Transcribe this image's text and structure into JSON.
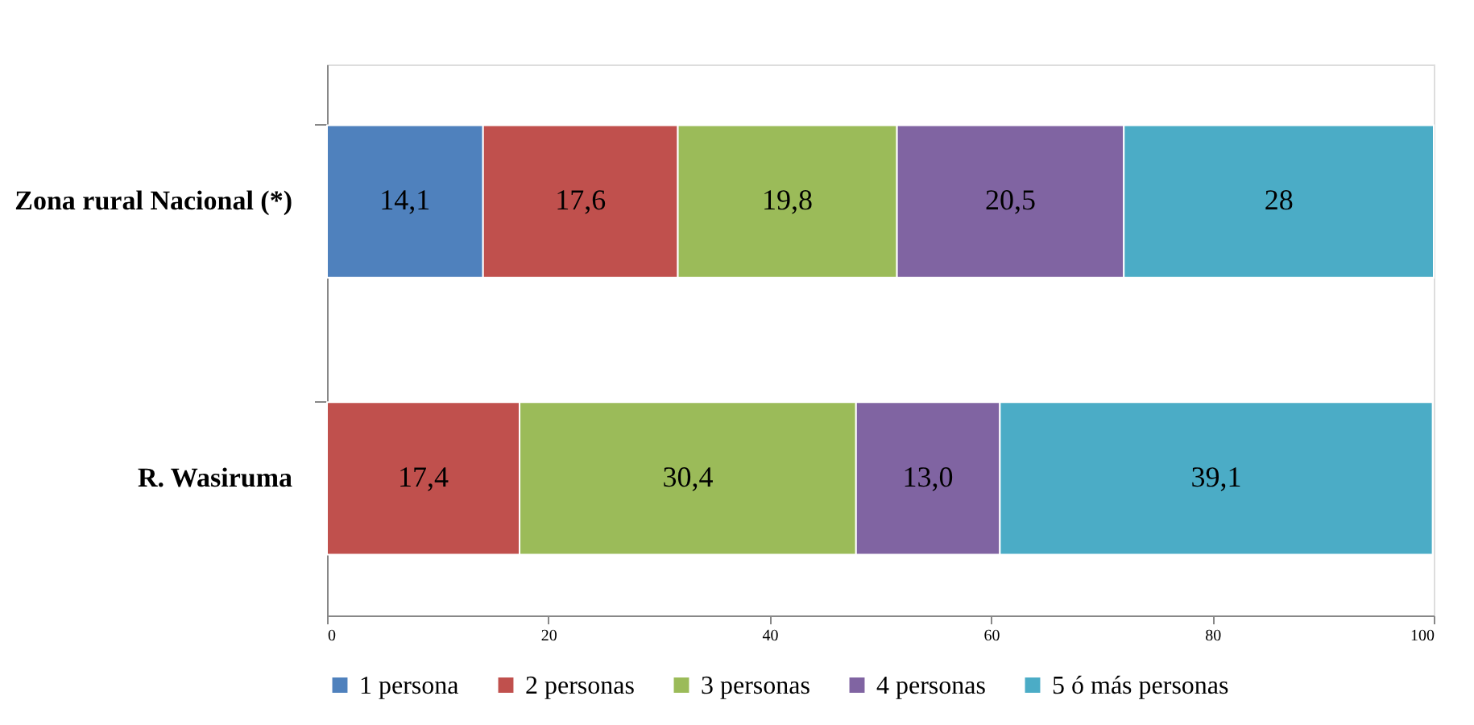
{
  "chart_data": {
    "type": "bar",
    "orientation": "horizontal",
    "stacked": true,
    "categories": [
      "Zona rural Nacional (*)",
      "R. Wasiruma"
    ],
    "series": [
      {
        "name": "1 persona",
        "color": "#4f81bd",
        "values": [
          14.1,
          null
        ],
        "value_labels": [
          "14,1",
          null
        ]
      },
      {
        "name": "2 personas",
        "color": "#c0504d",
        "values": [
          17.6,
          17.4
        ],
        "value_labels": [
          "17,6",
          "17,4"
        ]
      },
      {
        "name": "3 personas",
        "color": "#9bbb59",
        "values": [
          19.8,
          30.4
        ],
        "value_labels": [
          "19,8",
          "30,4"
        ]
      },
      {
        "name": "4 personas",
        "color": "#8064a2",
        "values": [
          20.5,
          13.0
        ],
        "value_labels": [
          "20,5",
          "13,0"
        ]
      },
      {
        "name": "5 ó más personas",
        "color": "#4bacc6",
        "values": [
          28,
          39.1
        ],
        "value_labels": [
          "28",
          "39,1"
        ]
      }
    ],
    "xlim": [
      0,
      100
    ],
    "xticks": [
      0,
      20,
      40,
      60,
      80,
      100
    ],
    "grid": false,
    "legend": "bottom"
  }
}
